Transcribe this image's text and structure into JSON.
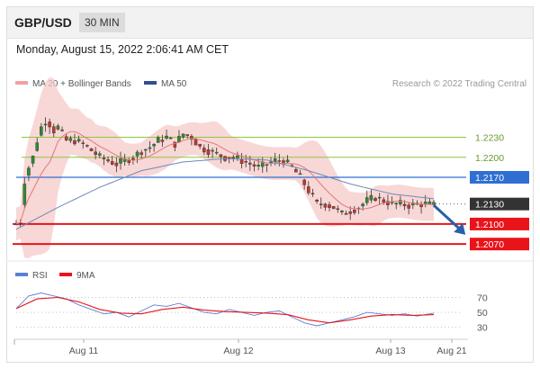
{
  "header": {
    "symbol": "GBP/USD",
    "timeframe": "30 MIN"
  },
  "datetime": "Monday, August 15, 2022 2:06:41 AM CET",
  "legend": {
    "ma20": "MA 20 + Bollinger Bands",
    "ma50": "MA 50",
    "credit": "Research © 2022 Trading Central"
  },
  "colors": {
    "up": "#2e8b2e",
    "down": "#c0392b",
    "bands": "#f6c9c9",
    "ma20": "#e07a7a",
    "ma50": "#7088b8",
    "support": "#e8141a",
    "pivot": "#2f6fd3",
    "resistance": "#8cc63f",
    "last": "#333333",
    "arrow": "#2b5fa8",
    "rsi": "#5b7fd6",
    "rsi_ma": "#e8141a"
  },
  "chart_data": [
    {
      "type": "candlestick",
      "title": "GBP/USD",
      "interval": "30 MIN",
      "ylim": [
        1.205,
        1.229
      ],
      "x_ticks": [
        "Aug 11",
        "Aug 12",
        "Aug 13",
        "Aug 21"
      ],
      "levels": [
        {
          "label": "1.2230",
          "value": 1.223,
          "kind": "resistance"
        },
        {
          "label": "1.2200",
          "value": 1.22,
          "kind": "resistance"
        },
        {
          "label": "1.2170",
          "value": 1.217,
          "kind": "pivot"
        },
        {
          "label": "1.2130",
          "value": 1.213,
          "kind": "last"
        },
        {
          "label": "1.2100",
          "value": 1.21,
          "kind": "support"
        },
        {
          "label": "1.2070",
          "value": 1.207,
          "kind": "support"
        }
      ],
      "close_path": [
        [
          0,
          1.21
        ],
        [
          1,
          1.2105
        ],
        [
          2,
          1.2165
        ],
        [
          3,
          1.2185
        ],
        [
          4,
          1.22
        ],
        [
          5,
          1.2225
        ],
        [
          6,
          1.2245
        ],
        [
          7,
          1.2255
        ],
        [
          8,
          1.225
        ],
        [
          9,
          1.224
        ],
        [
          10,
          1.2245
        ],
        [
          12,
          1.2225
        ],
        [
          14,
          1.2225
        ],
        [
          16,
          1.222
        ],
        [
          18,
          1.221
        ],
        [
          20,
          1.22
        ],
        [
          22,
          1.2195
        ],
        [
          24,
          1.219
        ],
        [
          26,
          1.2195
        ],
        [
          28,
          1.22
        ],
        [
          30,
          1.221
        ],
        [
          32,
          1.2215
        ],
        [
          34,
          1.2225
        ],
        [
          36,
          1.223
        ],
        [
          38,
          1.222
        ],
        [
          40,
          1.2235
        ],
        [
          42,
          1.223
        ],
        [
          44,
          1.2215
        ],
        [
          46,
          1.221
        ],
        [
          48,
          1.2205
        ],
        [
          50,
          1.22
        ],
        [
          52,
          1.22
        ],
        [
          54,
          1.2195
        ],
        [
          56,
          1.219
        ],
        [
          58,
          1.2185
        ],
        [
          60,
          1.219
        ],
        [
          62,
          1.2195
        ],
        [
          64,
          1.2195
        ],
        [
          66,
          1.2185
        ],
        [
          68,
          1.217
        ],
        [
          70,
          1.215
        ],
        [
          72,
          1.213
        ],
        [
          74,
          1.213
        ],
        [
          76,
          1.2125
        ],
        [
          78,
          1.2115
        ],
        [
          80,
          1.212
        ],
        [
          82,
          1.2125
        ],
        [
          84,
          1.2135
        ],
        [
          86,
          1.214
        ],
        [
          88,
          1.2135
        ],
        [
          90,
          1.213
        ],
        [
          92,
          1.213
        ],
        [
          94,
          1.2128
        ],
        [
          96,
          1.213
        ],
        [
          98,
          1.213
        ],
        [
          100,
          1.2128
        ]
      ],
      "ma50_path": [
        [
          0,
          1.2092
        ],
        [
          10,
          1.2125
        ],
        [
          20,
          1.2155
        ],
        [
          30,
          1.218
        ],
        [
          40,
          1.2193
        ],
        [
          50,
          1.2198
        ],
        [
          60,
          1.2196
        ],
        [
          70,
          1.218
        ],
        [
          80,
          1.216
        ],
        [
          90,
          1.2145
        ],
        [
          100,
          1.2138
        ]
      ],
      "forecast": {
        "from": [
          100,
          1.2128
        ],
        "to": [
          105,
          1.21
        ]
      }
    },
    {
      "type": "line",
      "title": "RSI",
      "series": [
        {
          "name": "RSI",
          "values": [
            [
              0,
              55
            ],
            [
              3,
              72
            ],
            [
              6,
              76
            ],
            [
              9,
              72
            ],
            [
              12,
              68
            ],
            [
              15,
              60
            ],
            [
              18,
              54
            ],
            [
              21,
              48
            ],
            [
              24,
              50
            ],
            [
              27,
              44
            ],
            [
              30,
              52
            ],
            [
              33,
              60
            ],
            [
              36,
              58
            ],
            [
              39,
              62
            ],
            [
              42,
              56
            ],
            [
              45,
              50
            ],
            [
              48,
              48
            ],
            [
              51,
              54
            ],
            [
              54,
              50
            ],
            [
              57,
              46
            ],
            [
              60,
              50
            ],
            [
              63,
              52
            ],
            [
              66,
              44
            ],
            [
              69,
              36
            ],
            [
              72,
              32
            ],
            [
              75,
              36
            ],
            [
              78,
              40
            ],
            [
              81,
              44
            ],
            [
              84,
              50
            ],
            [
              87,
              48
            ],
            [
              90,
              46
            ],
            [
              93,
              48
            ],
            [
              96,
              45
            ],
            [
              100,
              49
            ]
          ]
        },
        {
          "name": "9MA",
          "values": [
            [
              0,
              55
            ],
            [
              5,
              68
            ],
            [
              10,
              70
            ],
            [
              15,
              64
            ],
            [
              20,
              54
            ],
            [
              25,
              49
            ],
            [
              30,
              48
            ],
            [
              35,
              54
            ],
            [
              40,
              57
            ],
            [
              45,
              53
            ],
            [
              50,
              51
            ],
            [
              55,
              50
            ],
            [
              60,
              49
            ],
            [
              65,
              47
            ],
            [
              70,
              40
            ],
            [
              75,
              36
            ],
            [
              80,
              40
            ],
            [
              85,
              45
            ],
            [
              90,
              47
            ],
            [
              95,
              46
            ],
            [
              100,
              47
            ]
          ]
        }
      ],
      "ylim": [
        20,
        85
      ],
      "y_ticks": [
        "70",
        "50",
        "30"
      ],
      "levels": [
        70,
        50,
        30
      ]
    }
  ]
}
